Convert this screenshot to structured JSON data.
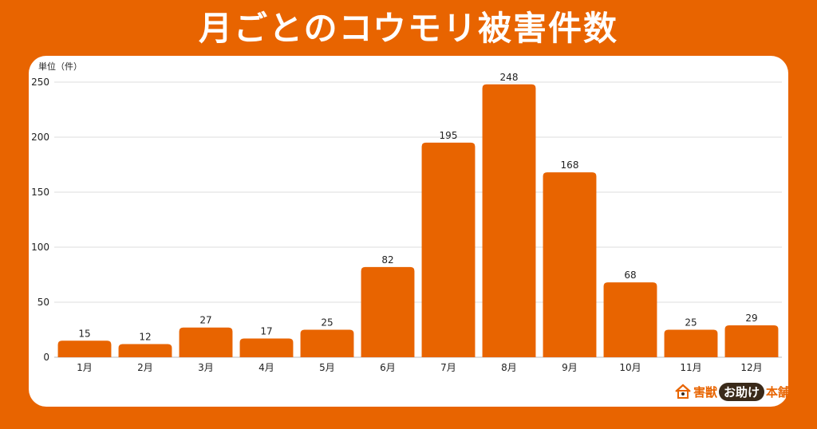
{
  "title": "月ごとのコウモリ被害件数",
  "logo": {
    "part1": "害獣",
    "part2": "お助け",
    "part3": "本舗"
  },
  "chart_data": {
    "type": "bar",
    "unit_label": "単位（件）",
    "categories": [
      "1月",
      "2月",
      "3月",
      "4月",
      "5月",
      "6月",
      "7月",
      "8月",
      "9月",
      "10月",
      "11月",
      "12月"
    ],
    "values": [
      15,
      12,
      27,
      17,
      25,
      82,
      195,
      248,
      168,
      68,
      25,
      29
    ],
    "ylim": [
      0,
      250
    ],
    "yticks": [
      0,
      50,
      100,
      150,
      200,
      250
    ],
    "grid": true,
    "bar_color": "#E86400",
    "grid_color": "#dddddd"
  }
}
